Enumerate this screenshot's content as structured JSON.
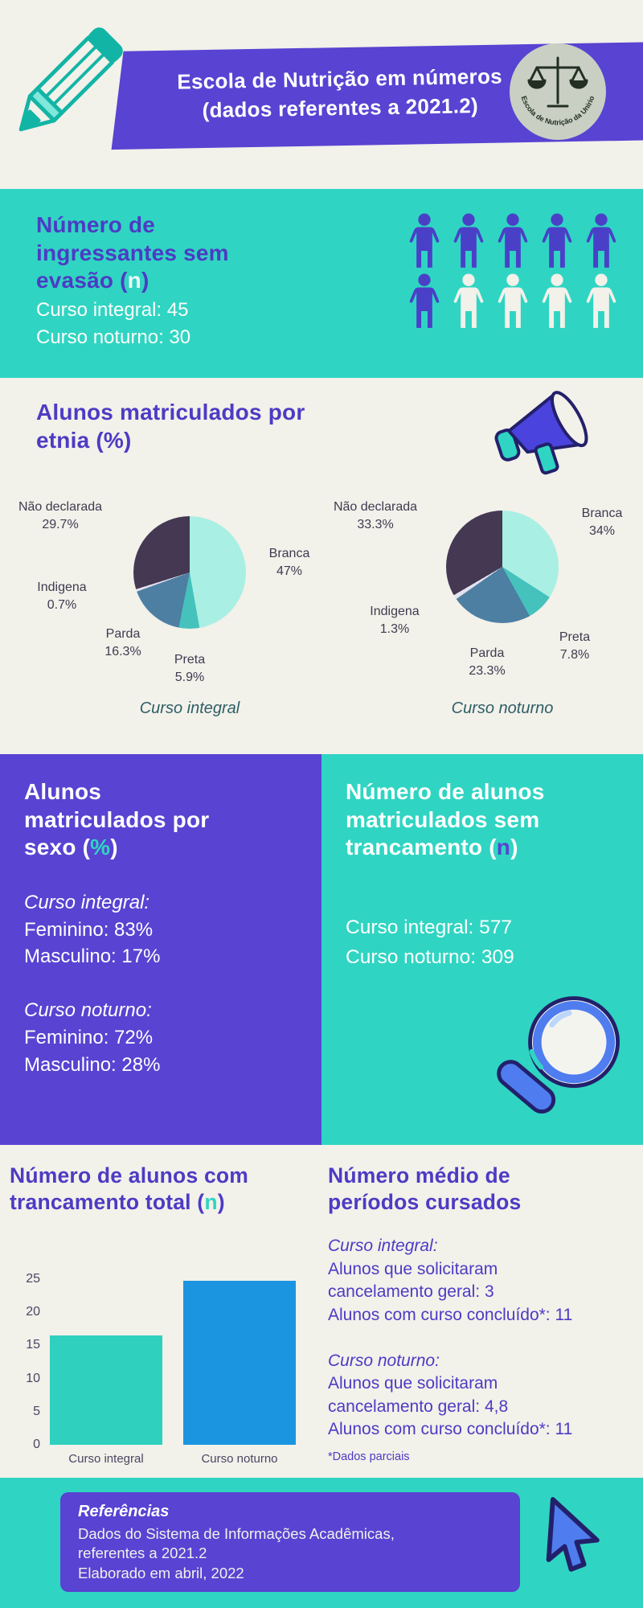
{
  "palette": {
    "background": "#f2f1ea",
    "teal": "#2fd5c2",
    "purple": "#5843d2",
    "heading_purple": "#4d3bc4",
    "bar_blue": "#1b95e0"
  },
  "header": {
    "banner": {
      "line1": "Escola de Nutrição em números",
      "line2": "(dados referentes a 2021.2)"
    },
    "logo_text": "Escola de Nutrição da Unirio"
  },
  "ingressantes": {
    "title_segments": [
      {
        "t": "Número de ingressantes sem evasão ("
      },
      {
        "t": "n",
        "c": "accent-light"
      },
      {
        "t": ")"
      }
    ],
    "body": "Curso integral: 45\nCurso noturno: 30",
    "people": {
      "colors": {
        "purple": "#4a40c8",
        "white": "#f2f1ea"
      },
      "rows": [
        [
          "purple",
          "purple",
          "purple",
          "purple",
          "purple"
        ],
        [
          "purple",
          "white",
          "white",
          "white",
          "white"
        ]
      ]
    }
  },
  "etnia": {
    "title_segments": [
      {
        "t": "Alunos matriculados por etnia (%)"
      }
    ],
    "pies": [
      {
        "caption": "Curso integral",
        "slices": [
          {
            "name": "Branca",
            "pct": 47,
            "label": "47%",
            "color": "#a9efe4"
          },
          {
            "name": "Preta",
            "pct": 5.9,
            "label": "5.9%",
            "color": "#46c2bd"
          },
          {
            "name": "Parda",
            "pct": 16.3,
            "label": "16.3%",
            "color": "#4d7fa3"
          },
          {
            "name": "Indigena",
            "pct": 0.7,
            "label": "0.7%",
            "color": "#e4e2ee"
          },
          {
            "name": "Não declarada",
            "pct": 29.7,
            "label": "29.7%",
            "color": "#443853"
          }
        ]
      },
      {
        "caption": "Curso noturno",
        "slices": [
          {
            "name": "Branca",
            "pct": 34,
            "label": "34%",
            "color": "#a9efe4"
          },
          {
            "name": "Preta",
            "pct": 7.8,
            "label": "7.8%",
            "color": "#46c2bd"
          },
          {
            "name": "Parda",
            "pct": 23.3,
            "label": "23.3%",
            "color": "#4d7fa3"
          },
          {
            "name": "Indigena",
            "pct": 1.3,
            "label": "1.3%",
            "color": "#e4e2ee"
          },
          {
            "name": "Não declarada",
            "pct": 33.3,
            "label": "33.3%",
            "color": "#443853"
          }
        ]
      }
    ]
  },
  "sexo": {
    "title_segments": [
      {
        "t": "Alunos matriculados por sexo ("
      },
      {
        "t": "%",
        "c": "accent-teal"
      },
      {
        "t": ")"
      }
    ],
    "body_segments": [
      {
        "t": "Curso integral:",
        "c": "it"
      },
      {
        "t": "\nFeminino: 83%\nMasculino: 17%\n\n"
      },
      {
        "t": "Curso noturno:",
        "c": "it"
      },
      {
        "t": "\nFeminino: 72%\nMasculino: 28%"
      }
    ]
  },
  "trancamento_sem": {
    "title_segments": [
      {
        "t": "Número de alunos matriculados sem trancamento ("
      },
      {
        "t": "n",
        "c": "accent-purple"
      },
      {
        "t": ")"
      }
    ],
    "body": "Curso integral: 577\nCurso noturno: 309"
  },
  "trancamento_total": {
    "title_segments": [
      {
        "t": "Número de alunos com trancamento total ("
      },
      {
        "t": "n",
        "c": "accent-teal"
      },
      {
        "t": ")"
      }
    ],
    "ymax": 25,
    "ytick_labels": [
      "25",
      "20",
      "15",
      "10",
      "5",
      "0"
    ],
    "bars": [
      {
        "label": "Curso integral",
        "value": 16.5,
        "color": "#2fd0bd"
      },
      {
        "label": "Curso noturno",
        "value": 24.8,
        "color": "#1b95e0"
      }
    ]
  },
  "periodos": {
    "title": "Número médio de períodos cursados",
    "body_segments": [
      {
        "t": "Curso integral:",
        "c": "it"
      },
      {
        "t": "\nAlunos que solicitaram cancelamento geral: 3\nAlunos com curso concluído*: 11\n\n"
      },
      {
        "t": "Curso noturno:",
        "c": "it"
      },
      {
        "t": "\nAlunos que solicitaram cancelamento geral: 4,8\nAlunos com curso concluído*: 11"
      }
    ],
    "footnote": "*Dados parciais"
  },
  "referencias": {
    "title": "Referências",
    "body": "Dados do Sistema de Informações Acadêmicas,\nreferentes a 2021.2\nElaborado em abril, 2022"
  },
  "chart_data": [
    {
      "type": "pie",
      "title": "Alunos matriculados por etnia (%) — Curso integral",
      "labels": [
        "Branca",
        "Preta",
        "Parda",
        "Indigena",
        "Não declarada"
      ],
      "values": [
        47,
        5.9,
        16.3,
        0.7,
        29.7
      ]
    },
    {
      "type": "pie",
      "title": "Alunos matriculados por etnia (%) — Curso noturno",
      "labels": [
        "Branca",
        "Preta",
        "Parda",
        "Indigena",
        "Não declarada"
      ],
      "values": [
        34,
        7.8,
        23.3,
        1.3,
        33.3
      ]
    },
    {
      "type": "bar",
      "title": "Número de alunos com trancamento total (n)",
      "categories": [
        "Curso integral",
        "Curso noturno"
      ],
      "values": [
        16.5,
        24.8
      ],
      "ylim": [
        0,
        25
      ],
      "yticks": [
        0,
        5,
        10,
        15,
        20,
        25
      ],
      "legend_position": "none",
      "grid": false
    }
  ]
}
